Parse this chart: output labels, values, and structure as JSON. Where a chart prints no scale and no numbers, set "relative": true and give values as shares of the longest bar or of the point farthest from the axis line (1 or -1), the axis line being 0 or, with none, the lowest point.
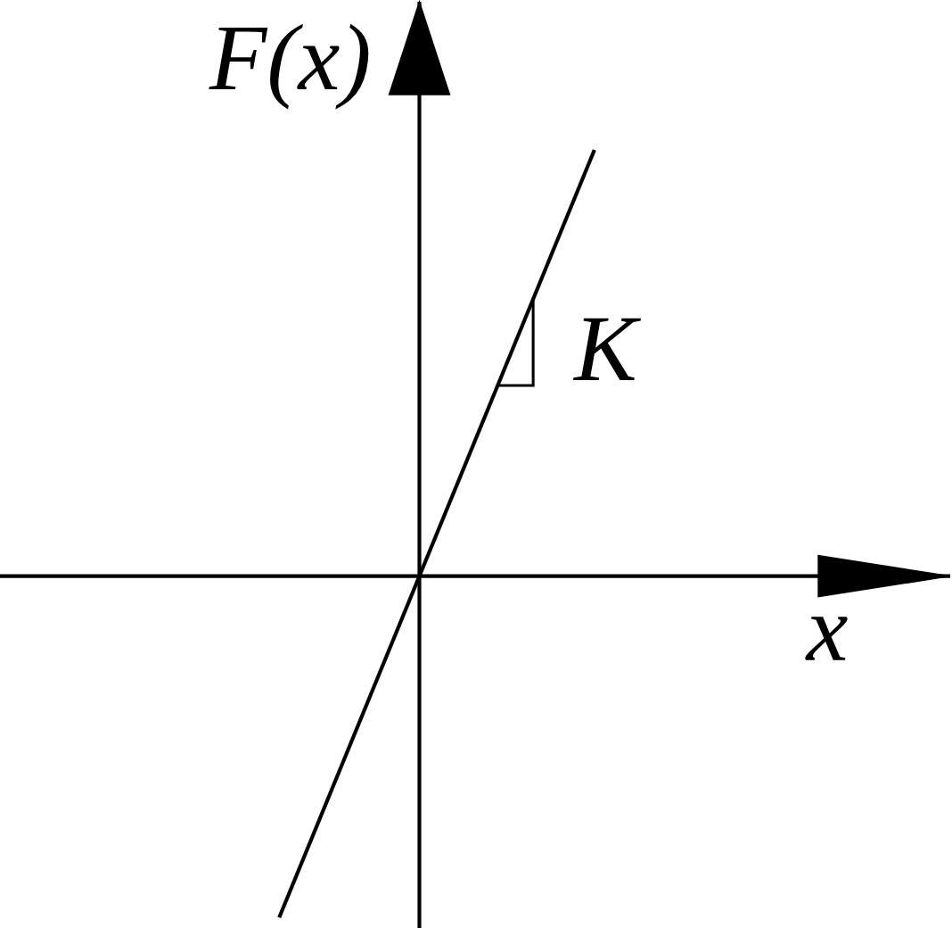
{
  "chart_data": {
    "type": "line",
    "relative": true,
    "xlabel": "x",
    "ylabel": "F(x)",
    "annotations": [
      "K"
    ],
    "categories": [
      null,
      null
    ],
    "values": [
      -0.8,
      1
    ],
    "color": "#000000"
  }
}
